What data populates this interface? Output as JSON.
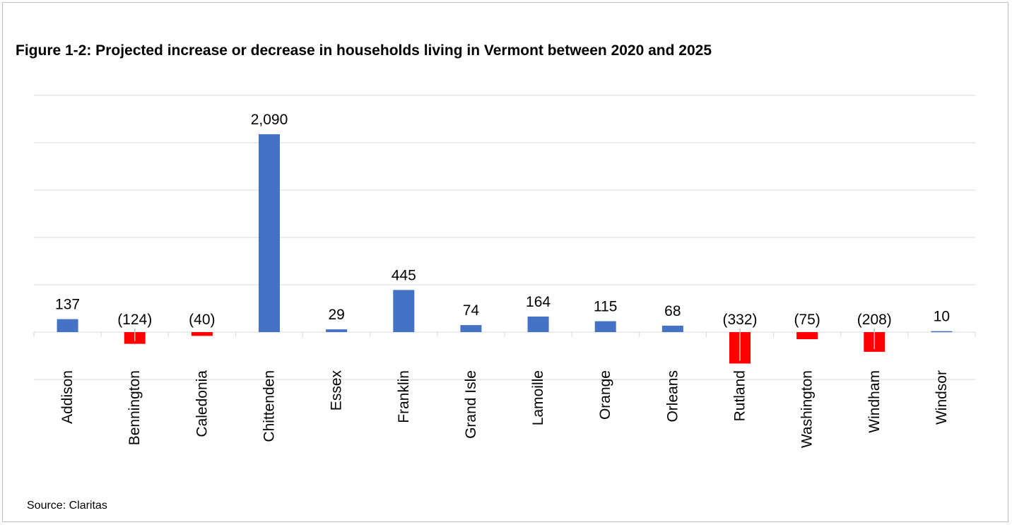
{
  "title": "Figure 1-2: Projected increase or decrease in households living in Vermont between 2020 and 2025",
  "source": "Source: Claritas",
  "colors": {
    "positive": "#4472c4",
    "negative": "#ff0000",
    "grid": "#d9d9d9",
    "axis": "#d9d9d9"
  },
  "chart_data": {
    "type": "bar",
    "categories": [
      "Addison",
      "Bennington",
      "Caledonia",
      "Chittenden",
      "Essex",
      "Franklin",
      "Grand Isle",
      "Lamoille",
      "Orange",
      "Orleans",
      "Rutland",
      "Washington",
      "Windham",
      "Windsor"
    ],
    "values": [
      137,
      -124,
      -40,
      2090,
      29,
      445,
      74,
      164,
      115,
      68,
      -332,
      -75,
      -208,
      10
    ],
    "data_labels": [
      "137",
      "(124)",
      "(40)",
      "2,090",
      "29",
      "445",
      "74",
      "164",
      "115",
      "68",
      "(332)",
      "(75)",
      "(208)",
      "10"
    ],
    "ylim": [
      -500,
      2500
    ],
    "gridlines": [
      -500,
      0,
      500,
      1000,
      1500,
      2000,
      2500
    ],
    "grid": true,
    "legend": "none",
    "y_tick_labels_shown": false
  }
}
